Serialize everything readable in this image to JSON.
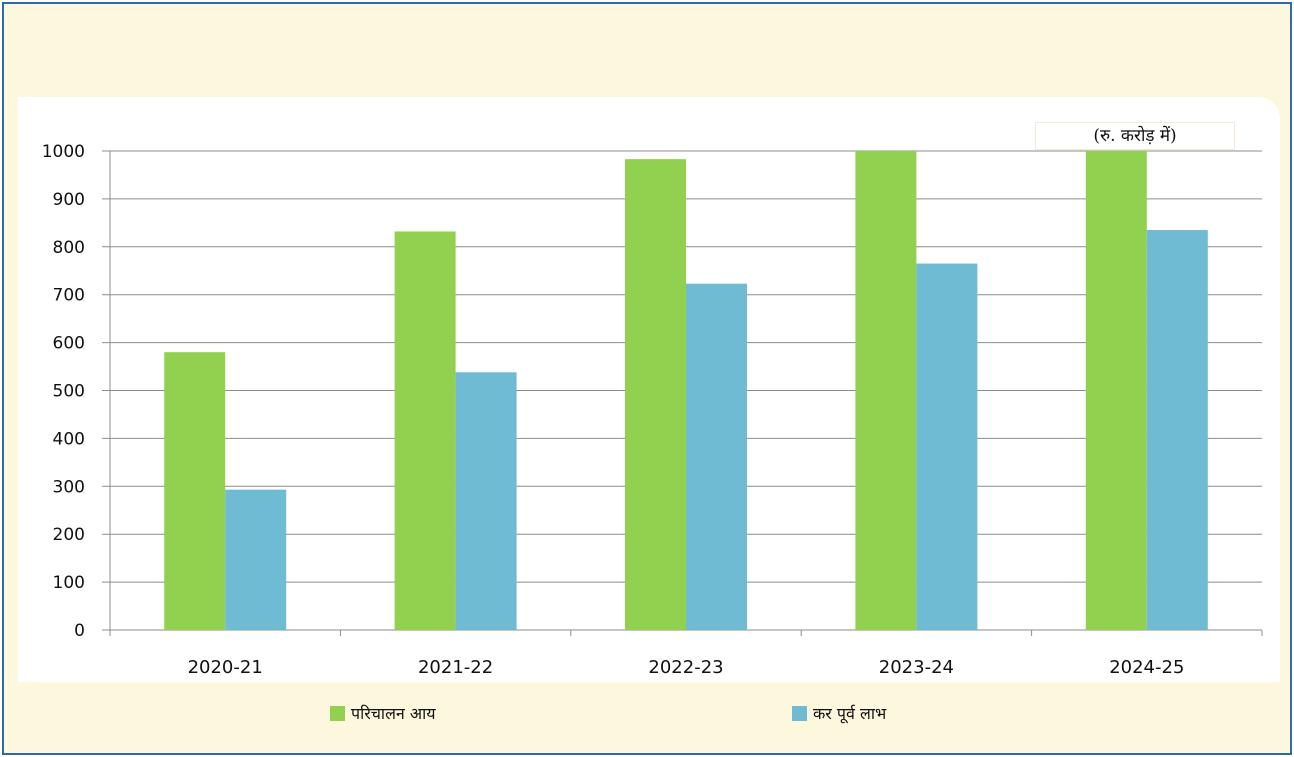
{
  "chart_data": {
    "type": "bar",
    "unit_note": "(रु. करोड़ में)",
    "categories": [
      "2020-21",
      "2021-22",
      "2022-23",
      "2023-24",
      "2024-25"
    ],
    "series": [
      {
        "name": "परिचालन आय",
        "color": "#92d050",
        "values": [
          580,
          832,
          983,
          1000,
          1000
        ]
      },
      {
        "name": "कर पूर्व लाभ",
        "color": "#6fbbd3",
        "values": [
          293,
          538,
          723,
          765,
          835
        ]
      }
    ],
    "ylim": [
      0,
      1000
    ],
    "yticks": [
      0,
      100,
      200,
      300,
      400,
      500,
      600,
      700,
      800,
      900,
      1000
    ],
    "grid": true,
    "legend_position": "bottom"
  }
}
